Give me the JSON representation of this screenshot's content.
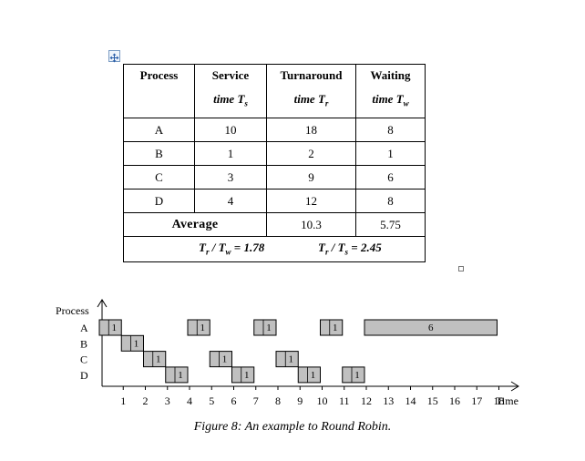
{
  "table": {
    "headers": [
      {
        "line1": "Process",
        "line2": ""
      },
      {
        "line1": "Service",
        "line2": "time Ts"
      },
      {
        "line1": "Turnaround",
        "line2": "time Tr"
      },
      {
        "line1": "Waiting",
        "line2": "time Tw"
      }
    ],
    "rows": [
      {
        "process": "A",
        "service": "10",
        "turnaround": "18",
        "waiting": "8"
      },
      {
        "process": "B",
        "service": "1",
        "turnaround": "2",
        "waiting": "1"
      },
      {
        "process": "C",
        "service": "3",
        "turnaround": "9",
        "waiting": "6"
      },
      {
        "process": "D",
        "service": "4",
        "turnaround": "12",
        "waiting": "8"
      }
    ],
    "average": {
      "label": "Average",
      "turnaround": "10.3",
      "waiting": "5.75"
    },
    "ratios": {
      "tr_tw": "Tr / Tw = 1.78",
      "tr_ts": "Tr / Ts = 2.45"
    }
  },
  "chart_data": {
    "type": "gantt",
    "ylabel": "Process",
    "xlabel": "Time",
    "processes": [
      "A",
      "B",
      "C",
      "D"
    ],
    "x_ticks": [
      "1",
      "2",
      "3",
      "4",
      "5",
      "6",
      "7",
      "8",
      "9",
      "10",
      "11",
      "12",
      "13",
      "14",
      "15",
      "16",
      "17",
      "18"
    ],
    "bar_fill": "#c0c0c0",
    "segments": [
      {
        "process": "A",
        "start": 0,
        "end": 1,
        "label": "1"
      },
      {
        "process": "B",
        "start": 1,
        "end": 2,
        "label": "1"
      },
      {
        "process": "C",
        "start": 2,
        "end": 3,
        "label": "1"
      },
      {
        "process": "D",
        "start": 3,
        "end": 4,
        "label": "1"
      },
      {
        "process": "A",
        "start": 4,
        "end": 5,
        "label": "1"
      },
      {
        "process": "C",
        "start": 5,
        "end": 6,
        "label": "1"
      },
      {
        "process": "D",
        "start": 6,
        "end": 7,
        "label": "1"
      },
      {
        "process": "A",
        "start": 7,
        "end": 8,
        "label": "1"
      },
      {
        "process": "C",
        "start": 8,
        "end": 9,
        "label": "1"
      },
      {
        "process": "D",
        "start": 9,
        "end": 10,
        "label": "1"
      },
      {
        "process": "A",
        "start": 10,
        "end": 11,
        "label": "1"
      },
      {
        "process": "D",
        "start": 11,
        "end": 12,
        "label": "1"
      },
      {
        "process": "A",
        "start": 12,
        "end": 18,
        "label": "6"
      }
    ]
  },
  "caption": "Figure 8: An example to Round Robin."
}
